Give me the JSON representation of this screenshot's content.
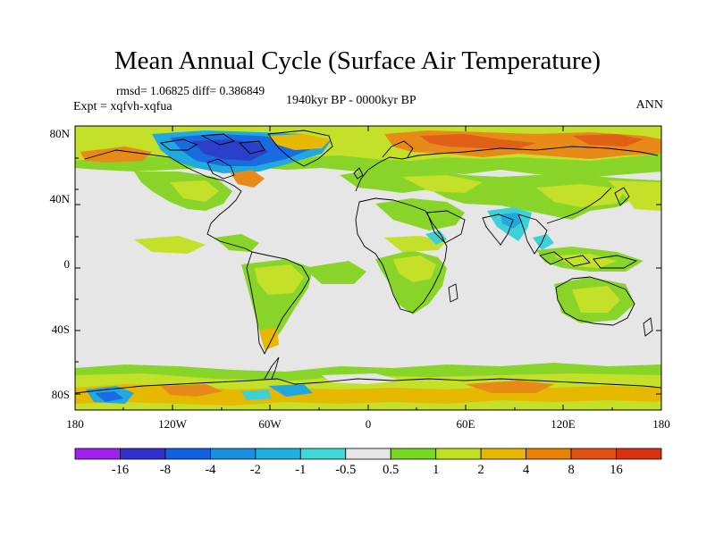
{
  "header": {
    "title": "Mean Annual Cycle (Surface Air Temperature)",
    "stats": "rmsd= 1.06825 diff= 0.386849",
    "experiment": "Expt = xqfvh-xqfua",
    "period": "1940kyr BP - 0000kyr BP",
    "season": "ANN"
  },
  "axes": {
    "lat_ticks": [
      "80N",
      "40N",
      "0",
      "40S",
      "80S"
    ],
    "lon_ticks": [
      "180",
      "120W",
      "60W",
      "0",
      "60E",
      "120E",
      "180"
    ]
  },
  "colorbar": {
    "labels": [
      "-16",
      "-8",
      "-4",
      "-2",
      "-1",
      "-0.5",
      "0.5",
      "1",
      "2",
      "4",
      "8",
      "16"
    ],
    "colors": [
      "#a020f0",
      "#3030d0",
      "#1060e0",
      "#1890e0",
      "#20b0e0",
      "#40d8d8",
      "#e6e6e6",
      "#78d820",
      "#c0e020",
      "#e8b800",
      "#e88000",
      "#e05010",
      "#d83010"
    ]
  },
  "palette": {
    "neutral": "#e6e6e6",
    "green": "#88d428",
    "yellowgreen": "#c4e028",
    "yellow": "#e6b800",
    "orange": "#e88a18",
    "red_orange": "#e06018",
    "cyan": "#3cd0d8",
    "light_blue": "#20a8e0",
    "blue": "#1a6ae0",
    "dark_blue": "#2a40c8"
  }
}
